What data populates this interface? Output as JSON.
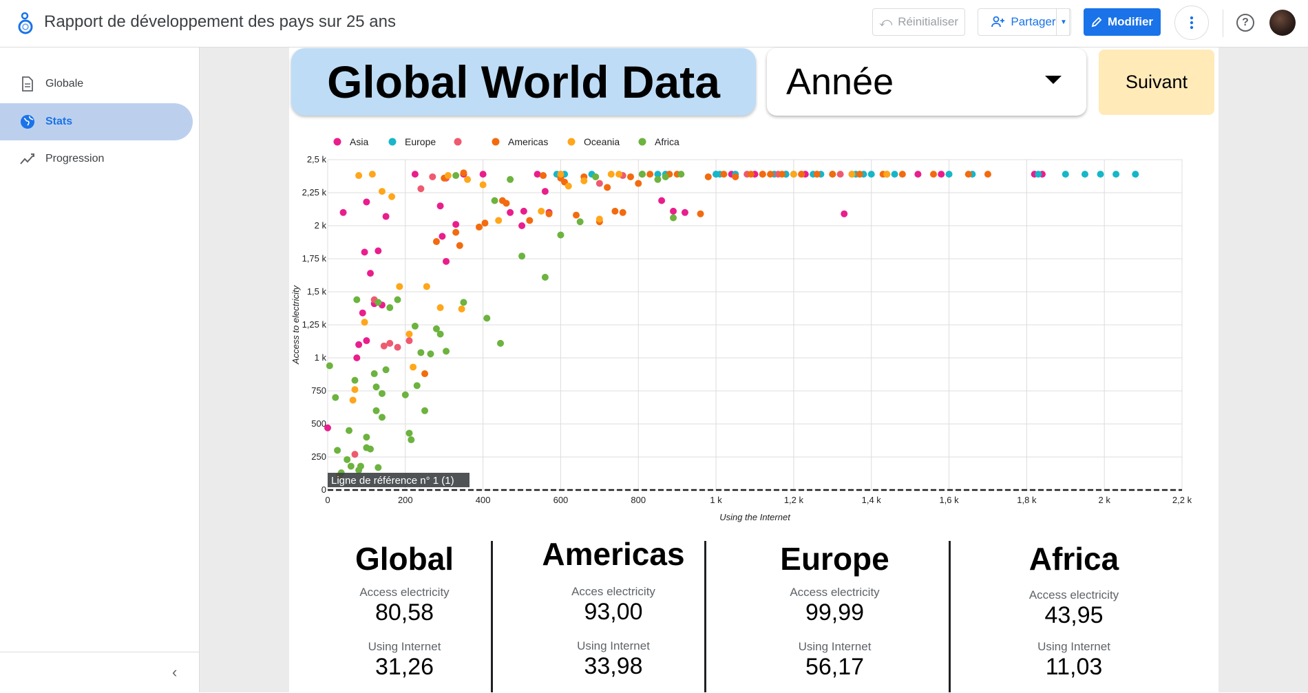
{
  "header": {
    "title": "Rapport de développement des pays sur 25 ans",
    "reset_label": "Réinitialiser",
    "share_label": "Partager",
    "edit_label": "Modifier"
  },
  "sidebar": {
    "items": [
      {
        "label": "Globale",
        "icon": "document-icon",
        "active": false
      },
      {
        "label": "Stats",
        "icon": "globe-icon",
        "active": true
      },
      {
        "label": "Progression",
        "icon": "trend-icon",
        "active": false
      }
    ]
  },
  "report": {
    "hero_title": "Global World Data",
    "year_select": "Année",
    "next_label": "Suivant"
  },
  "colors": {
    "accent": "#1a73e8",
    "Asia": "#e91e8c",
    "Europe": "#17b6c9",
    "Unknown": "#ee5a6f",
    "Americas": "#f26b0f",
    "Oceania": "#ffa61a",
    "Africa": "#6cb33f"
  },
  "chart_data": {
    "type": "scatter",
    "title": "",
    "xlabel": "Using the Internet",
    "ylabel": "Access to electricity",
    "xlim": [
      0,
      2200
    ],
    "ylim": [
      0,
      2500
    ],
    "x_ticks": [
      "0",
      "200",
      "400",
      "600",
      "800",
      "1 k",
      "1,2 k",
      "1,4 k",
      "1,6 k",
      "1,8 k",
      "2 k",
      "2,2 k"
    ],
    "y_ticks": [
      "0",
      "250",
      "500",
      "750",
      "1 k",
      "1,25 k",
      "1,5 k",
      "1,75 k",
      "2 k",
      "2,25 k",
      "2,5 k"
    ],
    "legend_position": "top-left",
    "grid": true,
    "reference_line": {
      "label": "Ligne de référence n° 1 (1)",
      "y": 0
    },
    "series": [
      {
        "name": "Asia",
        "points": [
          [
            0,
            470
          ],
          [
            40,
            2100
          ],
          [
            75,
            1000
          ],
          [
            80,
            1100
          ],
          [
            90,
            1340
          ],
          [
            95,
            1800
          ],
          [
            100,
            2180
          ],
          [
            110,
            1640
          ],
          [
            120,
            1410
          ],
          [
            100,
            1130
          ],
          [
            130,
            1810
          ],
          [
            140,
            1400
          ],
          [
            150,
            2070
          ],
          [
            225,
            2390
          ],
          [
            290,
            2150
          ],
          [
            295,
            1920
          ],
          [
            305,
            1730
          ],
          [
            330,
            2010
          ],
          [
            350,
            2390
          ],
          [
            400,
            2390
          ],
          [
            470,
            2100
          ],
          [
            500,
            2000
          ],
          [
            505,
            2110
          ],
          [
            540,
            2390
          ],
          [
            560,
            2260
          ],
          [
            570,
            2100
          ],
          [
            600,
            2390
          ],
          [
            860,
            2190
          ],
          [
            890,
            2110
          ],
          [
            920,
            2100
          ],
          [
            1000,
            2390
          ],
          [
            1040,
            2390
          ],
          [
            1100,
            2390
          ],
          [
            1180,
            2390
          ],
          [
            1230,
            2390
          ],
          [
            1330,
            2090
          ],
          [
            1520,
            2390
          ],
          [
            1580,
            2390
          ],
          [
            1820,
            2390
          ],
          [
            1840,
            2390
          ]
        ]
      },
      {
        "name": "Europe",
        "points": [
          [
            590,
            2390
          ],
          [
            610,
            2390
          ],
          [
            680,
            2390
          ],
          [
            810,
            2390
          ],
          [
            850,
            2390
          ],
          [
            870,
            2390
          ],
          [
            1000,
            2390
          ],
          [
            1010,
            2390
          ],
          [
            1050,
            2390
          ],
          [
            1150,
            2390
          ],
          [
            1180,
            2390
          ],
          [
            1200,
            2390
          ],
          [
            1250,
            2390
          ],
          [
            1270,
            2390
          ],
          [
            1300,
            2390
          ],
          [
            1350,
            2390
          ],
          [
            1360,
            2390
          ],
          [
            1370,
            2390
          ],
          [
            1380,
            2390
          ],
          [
            1400,
            2390
          ],
          [
            1440,
            2390
          ],
          [
            1460,
            2390
          ],
          [
            1600,
            2390
          ],
          [
            1660,
            2390
          ],
          [
            1830,
            2390
          ],
          [
            1900,
            2390
          ],
          [
            1950,
            2390
          ],
          [
            1990,
            2390
          ],
          [
            2030,
            2390
          ],
          [
            2080,
            2390
          ]
        ]
      },
      {
        "name": "",
        "points": [
          [
            70,
            270
          ],
          [
            120,
            1440
          ],
          [
            145,
            1090
          ],
          [
            160,
            1110
          ],
          [
            180,
            1080
          ],
          [
            210,
            1130
          ],
          [
            240,
            2280
          ],
          [
            270,
            2370
          ],
          [
            305,
            2360
          ],
          [
            700,
            2320
          ],
          [
            760,
            2380
          ],
          [
            810,
            2390
          ],
          [
            1080,
            2390
          ],
          [
            1120,
            2390
          ],
          [
            1160,
            2390
          ],
          [
            1220,
            2390
          ],
          [
            1260,
            2390
          ],
          [
            1320,
            2390
          ]
        ]
      },
      {
        "name": "Americas",
        "points": [
          [
            250,
            880
          ],
          [
            280,
            1880
          ],
          [
            300,
            2360
          ],
          [
            330,
            1950
          ],
          [
            340,
            1850
          ],
          [
            350,
            2400
          ],
          [
            390,
            1990
          ],
          [
            405,
            2020
          ],
          [
            450,
            2190
          ],
          [
            460,
            2170
          ],
          [
            520,
            2040
          ],
          [
            555,
            2380
          ],
          [
            570,
            2090
          ],
          [
            600,
            2360
          ],
          [
            610,
            2330
          ],
          [
            640,
            2080
          ],
          [
            660,
            2370
          ],
          [
            700,
            2030
          ],
          [
            720,
            2290
          ],
          [
            740,
            2110
          ],
          [
            760,
            2100
          ],
          [
            780,
            2370
          ],
          [
            800,
            2320
          ],
          [
            830,
            2390
          ],
          [
            880,
            2390
          ],
          [
            900,
            2390
          ],
          [
            960,
            2090
          ],
          [
            980,
            2370
          ],
          [
            1020,
            2390
          ],
          [
            1050,
            2370
          ],
          [
            1090,
            2390
          ],
          [
            1120,
            2390
          ],
          [
            1140,
            2390
          ],
          [
            1170,
            2390
          ],
          [
            1220,
            2390
          ],
          [
            1260,
            2390
          ],
          [
            1300,
            2390
          ],
          [
            1370,
            2390
          ],
          [
            1430,
            2390
          ],
          [
            1480,
            2390
          ],
          [
            1560,
            2390
          ],
          [
            1650,
            2390
          ],
          [
            1700,
            2390
          ]
        ]
      },
      {
        "name": "Oceania",
        "points": [
          [
            30,
            110
          ],
          [
            65,
            680
          ],
          [
            70,
            760
          ],
          [
            80,
            2380
          ],
          [
            95,
            1270
          ],
          [
            115,
            2390
          ],
          [
            140,
            2260
          ],
          [
            165,
            2220
          ],
          [
            185,
            1540
          ],
          [
            210,
            1180
          ],
          [
            220,
            930
          ],
          [
            255,
            1540
          ],
          [
            290,
            1380
          ],
          [
            310,
            2380
          ],
          [
            345,
            1370
          ],
          [
            360,
            2350
          ],
          [
            400,
            2310
          ],
          [
            440,
            2040
          ],
          [
            550,
            2110
          ],
          [
            600,
            2390
          ],
          [
            620,
            2300
          ],
          [
            660,
            2340
          ],
          [
            700,
            2050
          ],
          [
            730,
            2390
          ],
          [
            750,
            2390
          ],
          [
            810,
            2390
          ],
          [
            1200,
            2390
          ],
          [
            1350,
            2390
          ],
          [
            1440,
            2390
          ]
        ]
      },
      {
        "name": "Africa",
        "points": [
          [
            5,
            940
          ],
          [
            20,
            700
          ],
          [
            25,
            300
          ],
          [
            35,
            130
          ],
          [
            50,
            230
          ],
          [
            55,
            450
          ],
          [
            60,
            180
          ],
          [
            70,
            830
          ],
          [
            75,
            1440
          ],
          [
            80,
            150
          ],
          [
            85,
            180
          ],
          [
            100,
            400
          ],
          [
            100,
            320
          ],
          [
            110,
            310
          ],
          [
            120,
            880
          ],
          [
            125,
            600
          ],
          [
            125,
            780
          ],
          [
            130,
            1420
          ],
          [
            130,
            170
          ],
          [
            140,
            730
          ],
          [
            140,
            550
          ],
          [
            150,
            910
          ],
          [
            160,
            1380
          ],
          [
            180,
            1440
          ],
          [
            200,
            720
          ],
          [
            210,
            430
          ],
          [
            215,
            380
          ],
          [
            225,
            1240
          ],
          [
            230,
            790
          ],
          [
            240,
            1040
          ],
          [
            250,
            600
          ],
          [
            265,
            1030
          ],
          [
            280,
            1220
          ],
          [
            290,
            1180
          ],
          [
            305,
            1050
          ],
          [
            330,
            2380
          ],
          [
            350,
            1420
          ],
          [
            410,
            1300
          ],
          [
            430,
            2190
          ],
          [
            445,
            1110
          ],
          [
            470,
            2350
          ],
          [
            500,
            1770
          ],
          [
            560,
            1610
          ],
          [
            600,
            1930
          ],
          [
            650,
            2030
          ],
          [
            690,
            2370
          ],
          [
            810,
            2390
          ],
          [
            850,
            2350
          ],
          [
            870,
            2370
          ],
          [
            890,
            2060
          ],
          [
            910,
            2390
          ]
        ]
      }
    ]
  },
  "stats": {
    "label_electricity_main": "Access electricity",
    "label_electricity_alt": "Acces electricity",
    "label_internet": "Using Internet",
    "global": {
      "title": "Global",
      "electricity": "80,58",
      "internet": "31,26"
    },
    "americas": {
      "title": "Americas",
      "electricity": "93,00",
      "internet": "33,98"
    },
    "europe": {
      "title": "Europe",
      "electricity": "99,99",
      "internet": "56,17"
    },
    "africa": {
      "title": "Africa",
      "electricity": "43,95",
      "internet": "11,03"
    }
  }
}
